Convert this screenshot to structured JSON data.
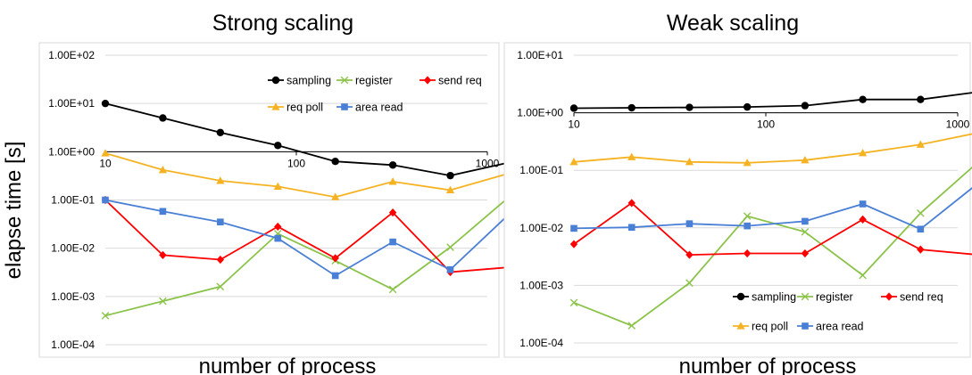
{
  "y_axis_label": "elapse time [s]",
  "colors": {
    "sampling": "#000000",
    "register": "#8bc34a",
    "send req": "#ff0000",
    "req poll": "#f5b323",
    "area read": "#4a7fd6"
  },
  "chart_data": [
    {
      "type": "line",
      "title": "Strong scaling",
      "xlabel": "number of process",
      "ylabel": "elapse time [s]",
      "x_scale": "log",
      "y_scale": "log",
      "ylim": [
        0.0001,
        100
      ],
      "y_ticks": [
        "1.00E+02",
        "1.00E+01",
        "1.00E+00",
        "1.00E-01",
        "1.00E-02",
        "1.00E-03",
        "1.00E-04"
      ],
      "x_ticks": [
        "10",
        "100",
        "1000"
      ],
      "grid": true,
      "legend": "top-right",
      "x": [
        10,
        20,
        40,
        80,
        160,
        320,
        640,
        1280
      ],
      "series": [
        {
          "name": "sampling",
          "marker": "circle",
          "values": [
            10,
            5,
            2.5,
            1.35,
            0.63,
            0.53,
            0.32,
            0.59
          ]
        },
        {
          "name": "register",
          "marker": "x",
          "values": [
            0.0004,
            0.0008,
            0.0016,
            0.02,
            0.0055,
            0.0014,
            0.0105,
            0.11
          ]
        },
        {
          "name": "send req",
          "marker": "diamond",
          "values": [
            0.1,
            0.0072,
            0.0058,
            0.028,
            0.0062,
            0.055,
            0.0032,
            0.004
          ]
        },
        {
          "name": "req poll",
          "marker": "triangle",
          "values": [
            0.93,
            0.42,
            0.25,
            0.19,
            0.115,
            0.24,
            0.16,
            0.35
          ]
        },
        {
          "name": "area read",
          "marker": "square",
          "values": [
            0.1,
            0.058,
            0.035,
            0.016,
            0.0027,
            0.0135,
            0.0036,
            0.048
          ]
        }
      ]
    },
    {
      "type": "line",
      "title": "Weak scaling",
      "xlabel": "number of process",
      "ylabel": "elapse time [s]",
      "x_scale": "log",
      "y_scale": "log",
      "ylim": [
        0.0001,
        10
      ],
      "y_ticks": [
        "1.00E+01",
        "1.00E+00",
        "1.00E-01",
        "1.00E-02",
        "1.00E-03",
        "1.00E-04"
      ],
      "x_ticks": [
        "10",
        "100",
        "1000"
      ],
      "grid": true,
      "legend": "bottom-right",
      "x": [
        10,
        20,
        40,
        80,
        160,
        320,
        640,
        1280
      ],
      "series": [
        {
          "name": "sampling",
          "marker": "circle",
          "values": [
            1.2,
            1.22,
            1.24,
            1.26,
            1.33,
            1.7,
            1.7,
            2.3
          ]
        },
        {
          "name": "register",
          "marker": "x",
          "values": [
            0.0005,
            0.0002,
            0.0011,
            0.016,
            0.0085,
            0.0015,
            0.018,
            0.14
          ]
        },
        {
          "name": "send req",
          "marker": "diamond",
          "values": [
            0.0052,
            0.027,
            0.0034,
            0.0036,
            0.0036,
            0.014,
            0.0042,
            0.0034
          ]
        },
        {
          "name": "req poll",
          "marker": "triangle",
          "values": [
            0.14,
            0.17,
            0.14,
            0.135,
            0.15,
            0.2,
            0.28,
            0.45
          ]
        },
        {
          "name": "area read",
          "marker": "square",
          "values": [
            0.0098,
            0.0102,
            0.0118,
            0.0108,
            0.013,
            0.026,
            0.0095,
            0.06
          ]
        }
      ]
    }
  ]
}
